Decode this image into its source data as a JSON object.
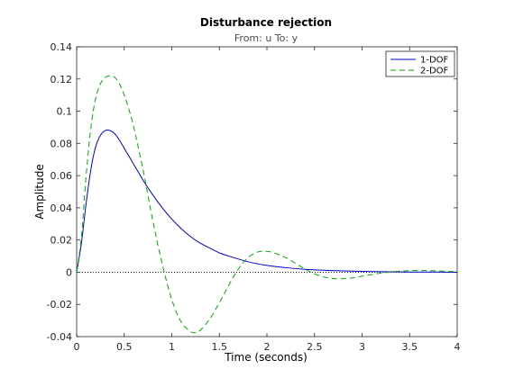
{
  "chart_data": {
    "type": "line",
    "title": "Disturbance rejection",
    "subtitle": "From: u  To: y",
    "xlabel": "Time (seconds)",
    "ylabel": "Amplitude",
    "xlim": [
      0,
      4
    ],
    "ylim": [
      -0.04,
      0.14
    ],
    "xticks": [
      0,
      0.5,
      1,
      1.5,
      2,
      2.5,
      3,
      3.5,
      4
    ],
    "xtick_labels": [
      "0",
      "0.5",
      "1",
      "1.5",
      "2",
      "2.5",
      "3",
      "3.5",
      "4"
    ],
    "yticks": [
      -0.04,
      -0.02,
      0,
      0.02,
      0.04,
      0.06,
      0.08,
      0.1,
      0.12,
      0.14
    ],
    "ytick_labels": [
      "-0.04",
      "-0.02",
      "0",
      "0.02",
      "0.04",
      "0.06",
      "0.08",
      "0.1",
      "0.12",
      "0.14"
    ],
    "grid": false,
    "legend_position": "top-right",
    "zero_line": true,
    "series": [
      {
        "name": "1-DOF",
        "color": "#0000cc",
        "style": "solid",
        "x": [
          0,
          0.05,
          0.1,
          0.15,
          0.2,
          0.25,
          0.3,
          0.35,
          0.4,
          0.45,
          0.5,
          0.6,
          0.7,
          0.8,
          0.9,
          1.0,
          1.1,
          1.2,
          1.3,
          1.4,
          1.5,
          1.6,
          1.8,
          2.0,
          2.2,
          2.4,
          2.6,
          2.8,
          3.0,
          3.2,
          3.4,
          3.6,
          3.8,
          4.0
        ],
        "y": [
          0,
          0.018,
          0.043,
          0.064,
          0.078,
          0.085,
          0.088,
          0.088,
          0.086,
          0.082,
          0.077,
          0.067,
          0.057,
          0.048,
          0.04,
          0.033,
          0.027,
          0.022,
          0.018,
          0.015,
          0.012,
          0.01,
          0.0065,
          0.0042,
          0.0028,
          0.0018,
          0.0012,
          0.0008,
          0.0005,
          0.0003,
          0.0002,
          0.0001,
          0.0001,
          0
        ]
      },
      {
        "name": "2-DOF",
        "color": "#00aa00",
        "style": "dashed",
        "x": [
          0,
          0.05,
          0.1,
          0.15,
          0.2,
          0.25,
          0.3,
          0.35,
          0.4,
          0.45,
          0.5,
          0.55,
          0.6,
          0.7,
          0.8,
          0.9,
          1.0,
          1.1,
          1.2,
          1.25,
          1.3,
          1.4,
          1.5,
          1.6,
          1.7,
          1.8,
          1.9,
          2.0,
          2.1,
          2.2,
          2.3,
          2.4,
          2.5,
          2.6,
          2.7,
          2.8,
          2.9,
          3.0,
          3.1,
          3.2,
          3.3,
          3.4,
          3.5,
          3.6,
          3.7,
          3.8,
          3.9,
          4.0
        ],
        "y": [
          0,
          0.022,
          0.06,
          0.09,
          0.108,
          0.117,
          0.121,
          0.122,
          0.121,
          0.117,
          0.11,
          0.101,
          0.09,
          0.063,
          0.032,
          0.005,
          -0.017,
          -0.031,
          -0.037,
          -0.0375,
          -0.036,
          -0.029,
          -0.019,
          -0.008,
          0.002,
          0.009,
          0.0125,
          0.013,
          0.0115,
          0.009,
          0.0055,
          0.002,
          -0.001,
          -0.003,
          -0.004,
          -0.004,
          -0.0035,
          -0.0025,
          -0.0015,
          -0.0005,
          0.0002,
          0.0007,
          0.001,
          0.0011,
          0.001,
          0.0008,
          0.0005,
          0.0003
        ]
      }
    ]
  }
}
